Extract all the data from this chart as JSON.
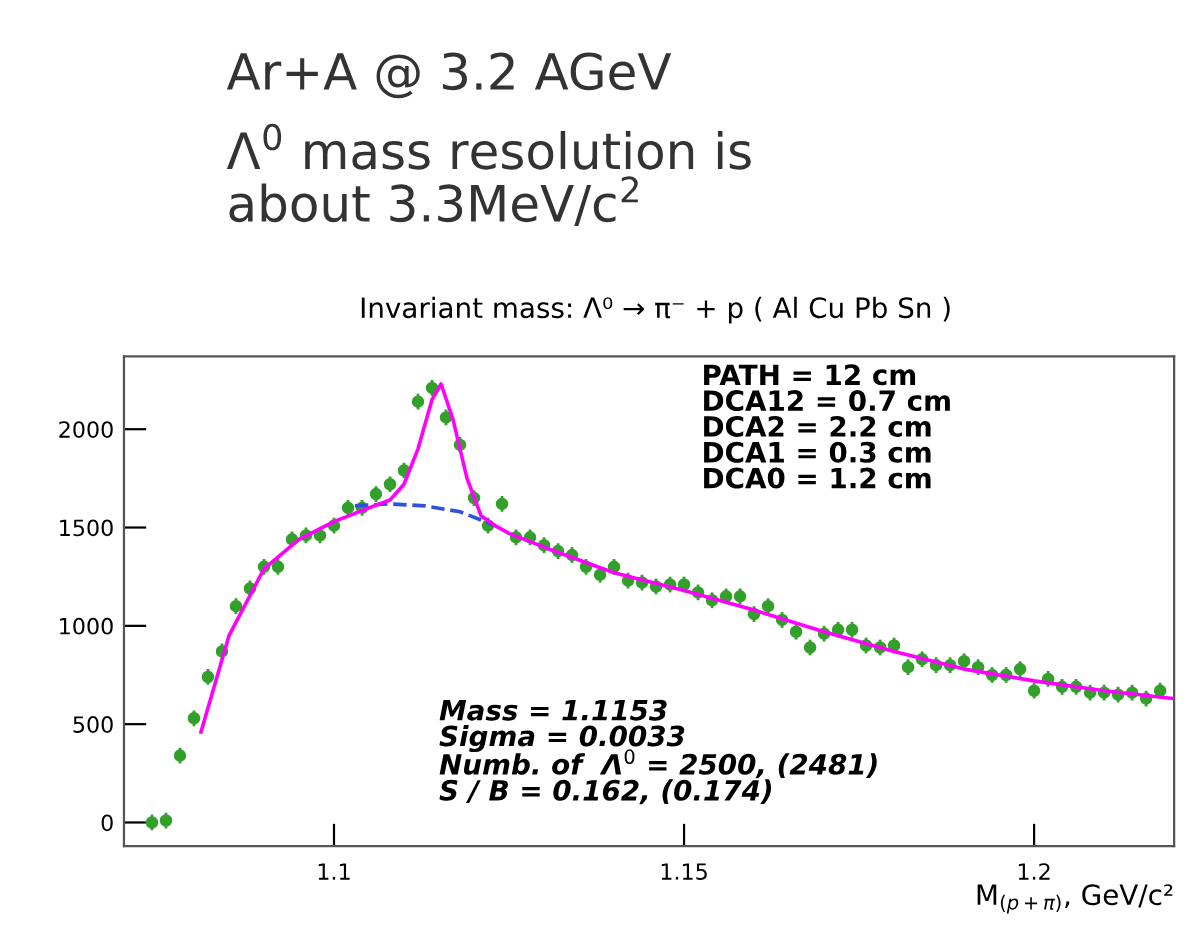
{
  "chart_data": {
    "type": "scatter",
    "title": "Invariant mass: Λ⁰ → π⁻ + p ( Al Cu Pb Sn )",
    "xlabel": "M$_{(p+π)}$, GeV/c²",
    "annotations": [
      "Ar+A @ 3.2 AGeV",
      "Λ$^{0}$ mass resolution is\nabout 3.3MeV/c$^{2}$",
      "PATH = 12 cm\nDCA12 = 0.7 cm\nDCA2 = 2.2 cm\nDCA1 = 0.3 cm\nDCA0 = 1.2 cm",
      "Mass = 1.1153\nSigma = 0.0033\nNumb. of  Λ$^{0}$ = 2500, (2481)\nS / B = 0.162, (0.174)"
    ],
    "xlim": [
      1.07,
      1.22
    ],
    "xticks": [
      1.1,
      1.15,
      1.2
    ],
    "ylim": [
      -120,
      2370
    ],
    "yticks": [
      0,
      500,
      1000,
      1500,
      2000
    ],
    "grid": false,
    "legend": false,
    "series": [
      {
        "marker": "circle",
        "color": "#33a02c",
        "x": [
          1.074,
          1.076,
          1.078,
          1.08,
          1.082,
          1.084,
          1.086,
          1.088,
          1.09,
          1.092,
          1.094,
          1.096,
          1.098,
          1.1,
          1.102,
          1.104,
          1.106,
          1.108,
          1.11,
          1.112,
          1.114,
          1.116,
          1.118,
          1.12,
          1.122,
          1.124,
          1.126,
          1.128,
          1.13,
          1.132,
          1.134,
          1.136,
          1.138,
          1.14,
          1.142,
          1.144,
          1.146,
          1.148,
          1.15,
          1.152,
          1.154,
          1.156,
          1.158,
          1.16,
          1.162,
          1.164,
          1.166,
          1.168,
          1.17,
          1.172,
          1.174,
          1.176,
          1.178,
          1.18,
          1.182,
          1.184,
          1.186,
          1.188,
          1.19,
          1.192,
          1.194,
          1.196,
          1.198,
          1.2,
          1.202,
          1.204,
          1.206,
          1.208,
          1.21,
          1.212,
          1.214,
          1.216,
          1.218
        ],
        "values": [
          0,
          10,
          340,
          530,
          740,
          870,
          1100,
          1190,
          1300,
          1300,
          1440,
          1460,
          1460,
          1510,
          1600,
          1600,
          1670,
          1720,
          1790,
          2140,
          2210,
          2060,
          1920,
          1650,
          1510,
          1620,
          1450,
          1450,
          1410,
          1380,
          1360,
          1300,
          1260,
          1300,
          1230,
          1220,
          1200,
          1210,
          1210,
          1170,
          1130,
          1150,
          1150,
          1060,
          1100,
          1030,
          970,
          890,
          960,
          980,
          980,
          900,
          890,
          900,
          790,
          830,
          800,
          800,
          820,
          790,
          750,
          750,
          780,
          670,
          730,
          690,
          690,
          660,
          660,
          650,
          660,
          630,
          670
        ],
        "errors": [
          40,
          40,
          40,
          40,
          40,
          40,
          40,
          40,
          40,
          40,
          40,
          40,
          40,
          40,
          40,
          40,
          40,
          40,
          40,
          40,
          40,
          40,
          40,
          40,
          40,
          40,
          40,
          40,
          40,
          40,
          40,
          40,
          40,
          40,
          40,
          40,
          40,
          40,
          40,
          40,
          40,
          40,
          40,
          40,
          40,
          40,
          40,
          40,
          40,
          40,
          40,
          40,
          40,
          40,
          40,
          40,
          40,
          40,
          40,
          40,
          40,
          40,
          40,
          40,
          40,
          40,
          40,
          40,
          40,
          40,
          40,
          40,
          40
        ]
      },
      {
        "type": "line",
        "color": "#3050e0",
        "line_style": "dashed",
        "x": [
          1.103,
          1.108,
          1.113,
          1.118,
          1.123
        ],
        "values": [
          1610,
          1620,
          1610,
          1580,
          1510
        ]
      },
      {
        "type": "line",
        "color": "#ff00ff",
        "line_style": "solid",
        "x": [
          1.081,
          1.085,
          1.09,
          1.095,
          1.1,
          1.105,
          1.108,
          1.11,
          1.112,
          1.114,
          1.1153,
          1.117,
          1.119,
          1.121,
          1.123,
          1.125,
          1.13,
          1.14,
          1.15,
          1.16,
          1.17,
          1.18,
          1.19,
          1.2,
          1.21,
          1.22
        ],
        "values": [
          460,
          950,
          1290,
          1440,
          1530,
          1600,
          1640,
          1720,
          1900,
          2150,
          2230,
          2050,
          1750,
          1560,
          1510,
          1470,
          1400,
          1270,
          1180,
          1080,
          970,
          870,
          780,
          720,
          670,
          630
        ]
      }
    ]
  }
}
